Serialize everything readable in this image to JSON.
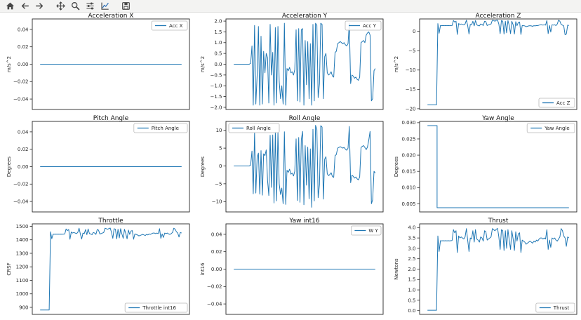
{
  "toolbar": {
    "groups": [
      [
        "home",
        "back",
        "forward"
      ],
      [
        "pan",
        "zoom",
        "subplots",
        "customize"
      ],
      [
        "save"
      ]
    ]
  },
  "colors": {
    "line": "#1f77b4",
    "toolbar_bg": "#f3f3f2",
    "spine": "#262626",
    "text": "#262626"
  },
  "chart_data": [
    {
      "type": "line",
      "title": "Acceleration X",
      "ylabel": "m/s^2",
      "ylim": [
        -0.052,
        0.052
      ],
      "yticks": [
        0.04,
        0.02,
        0,
        -0.02,
        -0.04
      ],
      "ytick_labels": [
        "0.04",
        "0.02",
        "0.00",
        "−0.02",
        "−0.04"
      ],
      "legend": {
        "label": "Acc X",
        "loc": "upper right"
      },
      "series": {
        "name": "Acc X",
        "points": [
          [
            0,
            0
          ],
          [
            1,
            0
          ]
        ]
      }
    },
    {
      "type": "line",
      "title": "Acceleration Y",
      "ylabel": "m/s^2",
      "ylim": [
        -2.1,
        2.1
      ],
      "yticks": [
        2.0,
        1.5,
        1.0,
        0.5,
        0.0,
        -0.5,
        -1.0,
        -1.5,
        -2.0
      ],
      "ytick_labels": [
        "2.0",
        "1.5",
        "1.0",
        "0.5",
        "0.0",
        "−0.5",
        "−1.0",
        "−1.5",
        "−2.0"
      ],
      "legend": {
        "label": "Acc Y",
        "loc": "upper right"
      },
      "series": {
        "name": "Acc Y",
        "values": [
          0,
          0,
          0,
          0,
          0,
          0,
          0,
          0,
          0,
          0,
          0,
          0,
          0,
          0.05,
          0.85,
          -1.9,
          1.8,
          -1.85,
          -0.5,
          1.75,
          -1.9,
          1.3,
          -1.85,
          0.6,
          -0.4,
          0.5,
          0.3,
          -1.8,
          1.85,
          -0.5,
          0.55,
          -1.9,
          1.7,
          -1.8,
          1.75,
          -0.8,
          -1.6,
          -1.0,
          -1.85,
          1.9,
          -1.9,
          -0.2,
          -0.3,
          -0.15,
          -0.4,
          -0.35,
          -0.5,
          -0.25,
          1.6,
          -1.7,
          1.65,
          -1.75,
          1.6,
          1.65,
          -1.9,
          1.1,
          -0.95,
          1.05,
          -1.6,
          0.95,
          -1.9,
          1.85,
          -1.7,
          1.9,
          1.8,
          -1.55,
          -0.9,
          1.9,
          1.85,
          -1.6,
          0.35,
          0.5,
          -0.4,
          -0.5,
          -0.45,
          -0.35,
          -0.55,
          -0.6,
          0.55,
          0.6,
          0.95,
          1.0,
          1.05,
          1.0,
          0.95,
          1.0,
          0.9,
          0.85,
          0.95,
          1.9,
          -0.9,
          -0.5,
          -0.55,
          -0.65,
          -0.6,
          -0.7,
          -0.75,
          -0.6,
          1.0,
          1.05,
          1.1,
          1.0,
          1.35,
          1.45,
          1.5,
          1.35,
          -1.7,
          -1.6,
          -0.3,
          -0.2
        ]
      }
    },
    {
      "type": "line",
      "title": "Acceleration Z",
      "ylabel": "m/s^2",
      "ylim": [
        -20.2,
        3.2
      ],
      "yticks": [
        0,
        -5,
        -10,
        -15,
        -20
      ],
      "ytick_labels": [
        "0",
        "−5",
        "−10",
        "−15",
        "−20"
      ],
      "legend": {
        "label": "Acc Z",
        "loc": "lower right"
      },
      "series": {
        "name": "Acc Z",
        "values": [
          -19,
          -19,
          -19,
          -19,
          -19,
          -19,
          -19,
          -19,
          2.0,
          -0.5,
          1.5,
          1.45,
          1.5,
          1.45,
          1.5,
          1.45,
          1.5,
          1.45,
          1.5,
          1.5,
          2.8,
          2.4,
          2.6,
          -0.8,
          2.0,
          1.8,
          1.9,
          1.8,
          1.7,
          1.9,
          2.9,
          1.5,
          -0.7,
          1.8,
          1.7,
          2.6,
          1.4,
          2.8,
          1.7,
          1.5,
          1.4,
          1.9,
          1.8,
          1.5,
          2.6,
          2.5,
          1.5,
          1.7,
          1.8,
          1.9,
          2.9,
          2.8,
          2.6,
          2.85,
          2.9,
          1.9,
          -0.6,
          2.8,
          2.6,
          -0.7,
          2.6,
          -0.4,
          2.8,
          1.5,
          -0.6,
          2.6,
          1.7,
          -0.7,
          2.5,
          1.45,
          2.3,
          2.4,
          -0.8,
          1.5,
          1.45,
          1.4,
          1.2,
          1.3,
          1.4,
          1.45,
          1.4,
          1.3,
          1.45,
          1.4,
          1.5,
          1.45,
          1.6,
          1.7,
          1.7,
          1.6,
          1.7,
          1.6,
          2.8,
          -0.6,
          1.5,
          -0.2,
          1.7,
          1.6,
          1.7,
          1.5,
          1.9,
          2.9,
          2.6,
          1.8,
          1.6,
          1.4,
          -0.9,
          -0.7,
          1.6,
          1.5
        ]
      }
    },
    {
      "type": "line",
      "title": "Pitch Angle",
      "ylabel": "Degrees",
      "ylim": [
        -0.052,
        0.052
      ],
      "yticks": [
        0.04,
        0.02,
        0,
        -0.02,
        -0.04
      ],
      "ytick_labels": [
        "0.04",
        "0.02",
        "0.00",
        "−0.02",
        "−0.04"
      ],
      "legend": {
        "label": "Pitch Angle",
        "loc": "upper right"
      },
      "series": {
        "name": "Pitch Angle",
        "points": [
          [
            0,
            0
          ],
          [
            1,
            0
          ]
        ]
      }
    },
    {
      "type": "line",
      "title": "Roll Angle",
      "ylabel": "Degrees",
      "ylim": [
        -12.9,
        12.5
      ],
      "yticks": [
        10,
        5,
        0,
        -5,
        -10
      ],
      "ytick_labels": [
        "10",
        "5",
        "0",
        "−5",
        "−10"
      ],
      "legend": {
        "label": "Roll Angle",
        "loc": "upper left"
      },
      "series": {
        "name": "Roll Angle",
        "values": [
          0,
          0,
          0,
          0,
          0,
          0,
          0,
          0,
          0,
          0,
          0,
          0,
          0,
          0.3,
          4.2,
          -7.8,
          9.3,
          -7.6,
          2.5,
          3.6,
          -7.9,
          4.3,
          -8.2,
          3.4,
          2.9,
          4.5,
          -4.0,
          -8.3,
          8.6,
          -6.0,
          8.7,
          -10.4,
          9.5,
          -9.8,
          9.4,
          -5.0,
          -8.0,
          -6.2,
          -10.6,
          9.6,
          -10.8,
          -1.2,
          -1.8,
          -0.9,
          -2.3,
          -2.0,
          -2.8,
          -1.5,
          7.6,
          -9.7,
          8.0,
          -10.2,
          7.4,
          9.7,
          -10.9,
          5.7,
          -5.4,
          5.3,
          -9.2,
          4.8,
          -11.6,
          10.3,
          -9.8,
          11.4,
          10.2,
          -8.9,
          -5.2,
          11.3,
          10.9,
          -9.3,
          1.9,
          2.6,
          -2.2,
          -2.7,
          -2.4,
          -1.9,
          -3.0,
          -3.2,
          2.9,
          3.2,
          5.0,
          5.2,
          5.4,
          5.2,
          5.0,
          5.2,
          4.7,
          4.4,
          5.0,
          11.1,
          -4.7,
          -2.6,
          -2.9,
          -3.4,
          -3.1,
          -3.6,
          -3.9,
          -3.1,
          5.2,
          5.5,
          5.7,
          5.2,
          4.6,
          5.3,
          7.3,
          9.7,
          -10.6,
          -9.5,
          -1.5,
          -2.0
        ]
      }
    },
    {
      "type": "line",
      "title": "Yaw Angle",
      "ylabel": "Degrees",
      "ylim": [
        0.0025,
        0.0304
      ],
      "yticks": [
        0.03,
        0.025,
        0.02,
        0.015,
        0.01,
        0.005
      ],
      "ytick_labels": [
        "0.030",
        "0.025",
        "0.020",
        "0.015",
        "0.010",
        "0.005"
      ],
      "legend": {
        "label": "Yaw Angle",
        "loc": "upper right"
      },
      "series": {
        "name": "Yaw Angle",
        "points": [
          [
            0,
            0.0291
          ],
          [
            0.068,
            0.0291
          ],
          [
            0.068,
            0.0038
          ],
          [
            1,
            0.0038
          ]
        ]
      }
    },
    {
      "type": "line",
      "title": "Throttle",
      "ylabel": "CRSF",
      "ylim": [
        848,
        1518
      ],
      "yticks": [
        1500,
        1400,
        1300,
        1200,
        1100,
        1000,
        900
      ],
      "ytick_labels": [
        "1500",
        "1400",
        "1300",
        "1200",
        "1100",
        "1000",
        "900"
      ],
      "legend": {
        "label": "Throttle int16",
        "loc": "lower right"
      },
      "series": {
        "name": "Throttle int16",
        "values": [
          880,
          880,
          880,
          880,
          880,
          880,
          880,
          880,
          1460,
          1408,
          1442,
          1441,
          1442,
          1441,
          1442,
          1441,
          1442,
          1441,
          1442,
          1443,
          1480,
          1468,
          1476,
          1404,
          1458,
          1450,
          1454,
          1450,
          1446,
          1454,
          1486,
          1443,
          1406,
          1450,
          1446,
          1476,
          1438,
          1480,
          1446,
          1443,
          1438,
          1454,
          1450,
          1440,
          1476,
          1472,
          1443,
          1446,
          1450,
          1454,
          1486,
          1482,
          1478,
          1483,
          1487,
          1454,
          1411,
          1482,
          1478,
          1407,
          1478,
          1414,
          1482,
          1443,
          1411,
          1478,
          1446,
          1407,
          1472,
          1440,
          1465,
          1468,
          1404,
          1443,
          1440,
          1436,
          1429,
          1432,
          1436,
          1440,
          1436,
          1432,
          1440,
          1436,
          1443,
          1440,
          1446,
          1450,
          1450,
          1446,
          1450,
          1446,
          1482,
          1411,
          1443,
          1418,
          1450,
          1446,
          1450,
          1443,
          1440,
          1446,
          1454,
          1486,
          1478,
          1460,
          1450,
          1421,
          1454,
          1450
        ]
      }
    },
    {
      "type": "line",
      "title": "Yaw int16",
      "ylabel": "int16",
      "ylim": [
        -0.052,
        0.052
      ],
      "yticks": [
        0.04,
        0.02,
        0,
        -0.02,
        -0.04
      ],
      "ytick_labels": [
        "0.04",
        "0.02",
        "0.00",
        "−0.02",
        "−0.04"
      ],
      "legend": {
        "label": "W Y",
        "loc": "upper right"
      },
      "series": {
        "name": "W Y",
        "points": [
          [
            0,
            0
          ],
          [
            1,
            0
          ]
        ]
      }
    },
    {
      "type": "line",
      "title": "Thrust",
      "ylabel": "Newtons",
      "ylim": [
        -0.18,
        4.18
      ],
      "yticks": [
        4.0,
        3.5,
        3.0,
        2.5,
        2.0,
        1.5,
        1.0,
        0.5,
        0.0
      ],
      "ytick_labels": [
        "4.0",
        "3.5",
        "3.0",
        "2.5",
        "2.0",
        "1.5",
        "1.0",
        "0.5",
        "0.0"
      ],
      "legend": {
        "label": "Thrust",
        "loc": "lower right"
      },
      "series": {
        "name": "Thrust",
        "values": [
          0.02,
          0.02,
          0.02,
          0.02,
          0.02,
          0.02,
          0.02,
          0.02,
          3.6,
          2.85,
          3.37,
          3.36,
          3.37,
          3.36,
          3.37,
          3.36,
          3.37,
          3.36,
          3.37,
          3.38,
          3.9,
          3.75,
          3.85,
          2.8,
          3.6,
          3.5,
          3.55,
          3.5,
          3.45,
          3.55,
          3.95,
          3.4,
          2.85,
          3.5,
          3.45,
          3.85,
          3.3,
          3.9,
          3.45,
          3.4,
          3.3,
          3.55,
          3.5,
          3.35,
          3.85,
          3.8,
          3.4,
          3.45,
          3.5,
          3.55,
          3.95,
          3.9,
          3.85,
          3.92,
          3.96,
          3.55,
          2.95,
          3.9,
          3.85,
          2.9,
          3.85,
          3.0,
          3.9,
          3.4,
          2.95,
          3.85,
          3.45,
          2.9,
          3.8,
          3.35,
          3.7,
          3.75,
          2.8,
          3.4,
          3.35,
          3.3,
          3.2,
          3.25,
          3.3,
          3.35,
          3.3,
          3.25,
          3.35,
          3.3,
          3.4,
          3.35,
          3.45,
          3.5,
          3.5,
          3.45,
          3.5,
          3.45,
          3.9,
          2.95,
          3.4,
          3.05,
          3.5,
          3.45,
          3.5,
          3.4,
          3.35,
          3.45,
          3.55,
          3.95,
          3.85,
          3.6,
          3.5,
          3.1,
          3.55,
          3.5
        ]
      }
    }
  ]
}
